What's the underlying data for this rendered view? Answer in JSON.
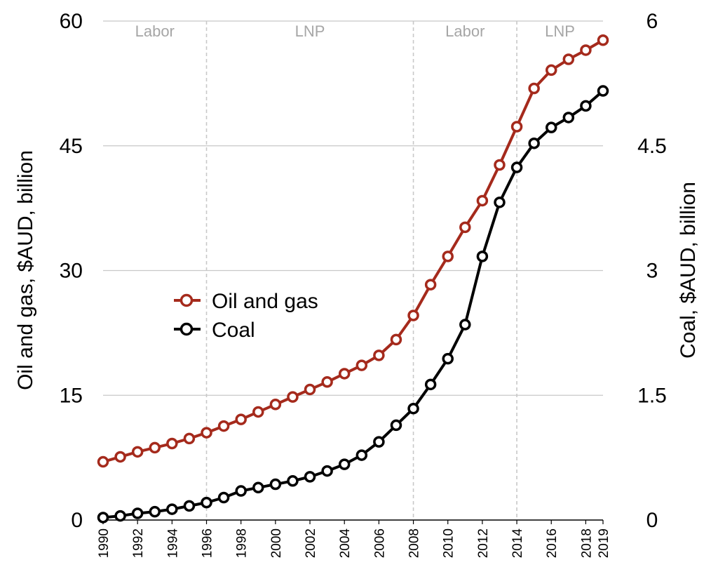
{
  "chart_data": {
    "type": "line",
    "x": [
      1990,
      1991,
      1992,
      1993,
      1994,
      1995,
      1996,
      1997,
      1998,
      1999,
      2000,
      2001,
      2002,
      2003,
      2004,
      2005,
      2006,
      2007,
      2008,
      2009,
      2010,
      2011,
      2012,
      2013,
      2014,
      2015,
      2016,
      2017,
      2018,
      2019
    ],
    "x_tick_labels": [
      "1990",
      "1992",
      "1994",
      "1996",
      "1998",
      "2000",
      "2002",
      "2004",
      "2006",
      "2008",
      "2010",
      "2012",
      "2014",
      "2016",
      "2018",
      "2019"
    ],
    "series": [
      {
        "name": "Oil and gas",
        "axis": "left",
        "color": "#a52a1c",
        "values": [
          7.0,
          7.6,
          8.2,
          8.7,
          9.2,
          9.8,
          10.5,
          11.3,
          12.1,
          13.0,
          13.9,
          14.8,
          15.7,
          16.6,
          17.6,
          18.6,
          19.8,
          21.7,
          24.6,
          28.3,
          31.7,
          35.2,
          38.4,
          42.7,
          47.3,
          51.9,
          54.1,
          55.4,
          56.5,
          57.7
        ]
      },
      {
        "name": "Coal",
        "axis": "right",
        "color": "#000000",
        "values": [
          0.03,
          0.05,
          0.08,
          0.1,
          0.13,
          0.17,
          0.21,
          0.27,
          0.35,
          0.39,
          0.43,
          0.47,
          0.52,
          0.59,
          0.67,
          0.78,
          0.94,
          1.14,
          1.34,
          1.63,
          1.94,
          2.35,
          3.17,
          3.82,
          4.24,
          4.53,
          4.72,
          4.84,
          4.98,
          5.16
        ]
      }
    ],
    "xlabel": "",
    "ylabel_left": "Oil and gas, $AUD, billion",
    "ylabel_right": "Coal, $AUD, billion",
    "ylim_left": [
      0,
      60
    ],
    "ylim_right": [
      0,
      6
    ],
    "yticks_left": [
      "0",
      "15",
      "30",
      "45",
      "60"
    ],
    "yticks_right": [
      "0",
      "1.5",
      "3",
      "4.5",
      "6"
    ],
    "ytick_values_left": [
      0,
      15,
      30,
      45,
      60
    ],
    "ytick_values_right": [
      0,
      1.5,
      3,
      4.5,
      6
    ],
    "grid": true,
    "legend": {
      "placement": "middle-left",
      "entries": [
        "Oil and gas",
        "Coal"
      ]
    },
    "periods": [
      {
        "label": "Labor",
        "start": 1990,
        "end": 1996
      },
      {
        "label": "LNP",
        "start": 1996,
        "end": 2008
      },
      {
        "label": "Labor",
        "start": 2008,
        "end": 2014
      },
      {
        "label": "LNP",
        "start": 2014,
        "end": 2019
      }
    ],
    "period_boundaries": [
      1996,
      2008,
      2014
    ]
  }
}
